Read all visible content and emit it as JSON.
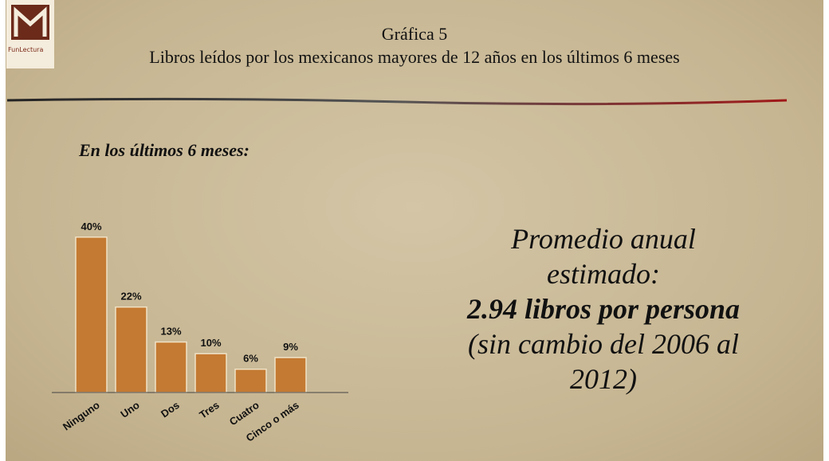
{
  "logo": {
    "text": "FunLectura"
  },
  "chart_data": {
    "type": "bar",
    "title": "Gráfica 5",
    "subtitle": "Libros leídos por los mexicanos mayores de 12 años en los últimos 6 meses",
    "lead": "En los últimos 6 meses:",
    "annotations": [
      "Promedio anual",
      "estimado:",
      "2.94 libros por persona",
      "(sin cambio del 2006 al",
      "2012)"
    ],
    "categories": [
      "Ninguno",
      "Uno",
      "Dos",
      "Tres",
      "Cuatro",
      "Cinco o más"
    ],
    "values": [
      40,
      22,
      13,
      10,
      6,
      9
    ],
    "value_labels": [
      "40%",
      "22%",
      "13%",
      "10%",
      "6%",
      "9%"
    ],
    "color": "#c47a32"
  }
}
